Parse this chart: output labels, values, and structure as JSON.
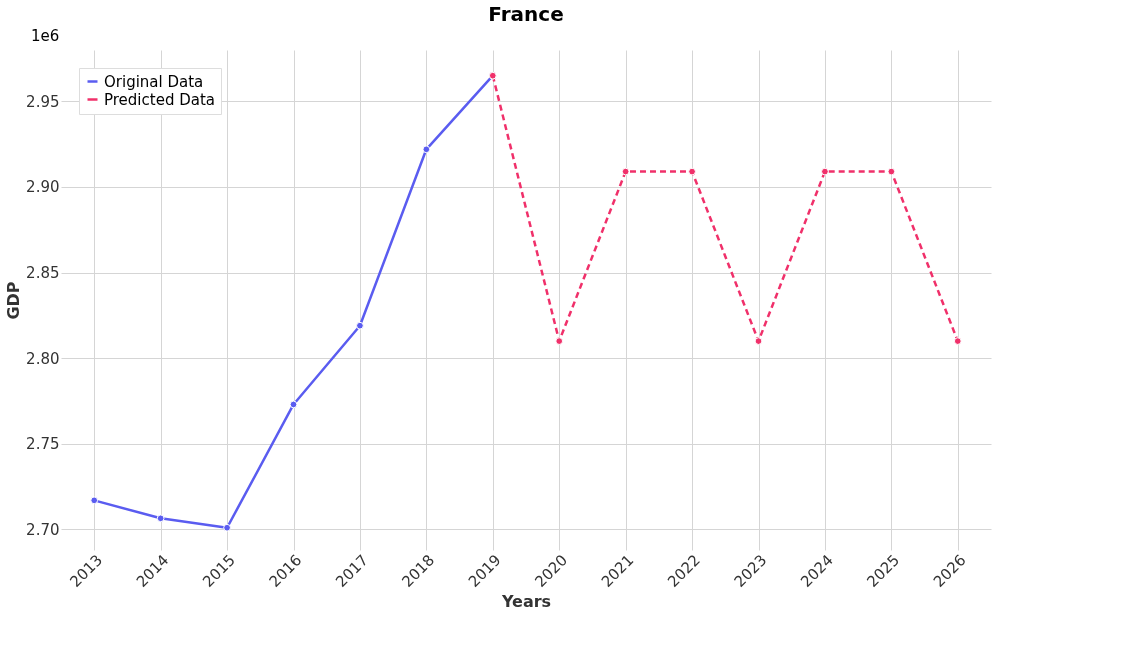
{
  "chart_data": {
    "type": "line",
    "title": "France",
    "xlabel": "Years",
    "ylabel": "GDP",
    "annotations": [
      "1e6"
    ],
    "categories": [
      "2013",
      "2014",
      "2015",
      "2016",
      "2017",
      "2018",
      "2019",
      "2020",
      "2021",
      "2022",
      "2023",
      "2024",
      "2025",
      "2026"
    ],
    "series": [
      {
        "name": "Original Data",
        "color": "#5a5cf0",
        "line_style": "solid",
        "values": [
          2.717,
          2.7065,
          2.701,
          2.773,
          2.819,
          2.922,
          2.965,
          null,
          null,
          null,
          null,
          null,
          null,
          null
        ]
      },
      {
        "name": "Predicted Data",
        "color": "#f0306a",
        "line_style": "dashed",
        "values": [
          null,
          null,
          null,
          null,
          null,
          null,
          2.965,
          2.81,
          2.909,
          2.909,
          2.81,
          2.909,
          2.909,
          2.81
        ]
      }
    ],
    "ylim": [
      2.688,
      2.98
    ],
    "yticks": [
      {
        "value": 2.7,
        "label": "2.70"
      },
      2.75,
      {
        "value": 2.8,
        "label": "2.80"
      },
      2.85,
      {
        "value": 2.9,
        "label": "2.90"
      },
      2.95
    ],
    "grid": true,
    "legend": "top left",
    "marker": "circle"
  }
}
